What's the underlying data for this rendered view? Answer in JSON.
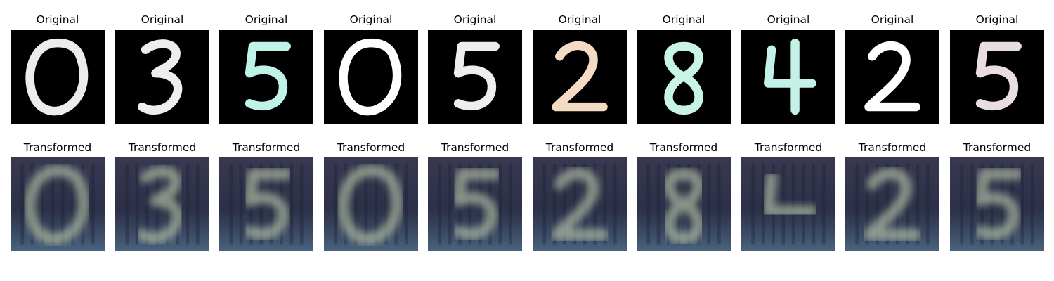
{
  "labels": {
    "original": "Original",
    "transformed": "Transformed"
  },
  "originals": [
    {
      "digit": "0",
      "color": "#ececec"
    },
    {
      "digit": "3",
      "color": "#eeeeee"
    },
    {
      "digit": "5",
      "color": "#bff3e8"
    },
    {
      "digit": "0",
      "color": "#ffffff"
    },
    {
      "digit": "5",
      "color": "#eeeeee"
    },
    {
      "digit": "2",
      "color": "#f4dcc4"
    },
    {
      "digit": "8",
      "color": "#c7f4e6"
    },
    {
      "digit": "4",
      "color": "#c4f1e7"
    },
    {
      "digit": "2",
      "color": "#ffffff"
    },
    {
      "digit": "5",
      "color": "#e8dde0"
    }
  ],
  "transformed_digits": [
    "0",
    "3",
    "5",
    "0",
    "5",
    "2",
    "8",
    "4",
    "2",
    "5"
  ],
  "colors": {
    "background_original": "#000000",
    "background_transformed": "#2e3148",
    "transformed_glow": "#a9b59e",
    "transformed_shadow": "#1c2035"
  }
}
